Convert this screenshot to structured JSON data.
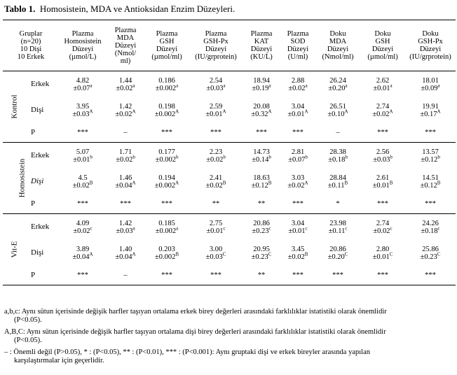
{
  "caption": {
    "label": "Tablo 1.",
    "text": "Homosistein, MDA ve Antioksidan Enzim Düzeyleri."
  },
  "header": {
    "first_col": [
      "Gruplar",
      "(n=20)",
      "10 Dişi",
      "10 Erkek"
    ],
    "columns": [
      [
        "Plazma",
        "Homosistein",
        "Düzeyi",
        "(µmol/L)"
      ],
      [
        "Plazma",
        "MDA",
        "Düzeyi",
        "(Nmol/",
        "ml)"
      ],
      [
        "Plazma",
        "GSH",
        "Düzeyi",
        "(µmol/ml)"
      ],
      [
        "Plazma",
        "GSH-Px",
        "Düzeyi",
        "(IU/grprotein)"
      ],
      [
        "Plazma",
        "KAT",
        "Düzeyi",
        "(KU/L)"
      ],
      [
        "Plazma",
        "SOD",
        "Düzeyi",
        "(U/ml)"
      ],
      [
        "Doku",
        "MDA",
        "Düzeyi",
        "(Nmol/ml)"
      ],
      [
        "Doku",
        "GSH",
        "Düzeyi",
        "(µmol/ml)"
      ],
      [
        "Doku",
        "GSH-Px",
        "Düzeyi",
        "(IU/grprotein)"
      ]
    ]
  },
  "groups": [
    {
      "name": "Kontrol",
      "rows": [
        {
          "label": "Erkek",
          "italic": false,
          "cells": [
            [
              "4.82",
              "±0.07",
              "a"
            ],
            [
              "1.44",
              "±0.02",
              "a"
            ],
            [
              "0.186",
              "±0.002",
              "a"
            ],
            [
              "2.54",
              "±0.03",
              "a"
            ],
            [
              "18.94",
              "±0.19",
              "a"
            ],
            [
              "2.88",
              "±0.02",
              "a"
            ],
            [
              "26.24",
              "±0.20",
              "a"
            ],
            [
              "2.62",
              "±0.01",
              "a"
            ],
            [
              "18.01",
              "±0.09",
              "a"
            ]
          ]
        },
        {
          "label": "Dişi",
          "italic": false,
          "cells": [
            [
              "3.95",
              "±0.03",
              "A"
            ],
            [
              "1.42",
              "±0.02",
              "A"
            ],
            [
              "0.198",
              "±0.002",
              "A"
            ],
            [
              "2.59",
              "±0.01",
              "A"
            ],
            [
              "20.08",
              "±0.32",
              "A"
            ],
            [
              "3.04",
              "±0.01",
              "A"
            ],
            [
              "26.51",
              "±0.10",
              "A"
            ],
            [
              "2.74",
              "±0.02",
              "A"
            ],
            [
              "19.91",
              "±0.17",
              "A"
            ]
          ]
        }
      ],
      "p": [
        "***",
        "–",
        "***",
        "***",
        "***",
        "***",
        "–",
        "***",
        "***"
      ]
    },
    {
      "name": "Homosistein",
      "rows": [
        {
          "label": "Erkek",
          "italic": false,
          "cells": [
            [
              "5.07",
              "±0.01",
              "b"
            ],
            [
              "1.71",
              "±0.02",
              "b"
            ],
            [
              "0.177",
              "±0.002",
              "b"
            ],
            [
              "2.23",
              "±0.02",
              "b"
            ],
            [
              "14.73",
              "±0.14",
              "b"
            ],
            [
              "2.81",
              "±0.07",
              "b"
            ],
            [
              "28.38",
              "±0.18",
              "b"
            ],
            [
              "2.56",
              "±0.03",
              "b"
            ],
            [
              "13.57",
              "±0.12",
              "b"
            ]
          ]
        },
        {
          "label": "Dişi",
          "italic": true,
          "cells": [
            [
              "4.5",
              "±0.02",
              "B"
            ],
            [
              "1.46",
              "±0.04",
              "A"
            ],
            [
              "0.194",
              "±0.002",
              "A"
            ],
            [
              "2.41",
              "±0.02",
              "B"
            ],
            [
              "18.63",
              "±0.12",
              "B"
            ],
            [
              "3.03",
              "±0.02",
              "A"
            ],
            [
              "28.84",
              "±0.11",
              "B"
            ],
            [
              "2.61",
              "±0.01",
              "B"
            ],
            [
              "14.51",
              "±0.12",
              "B"
            ]
          ]
        }
      ],
      "p": [
        "***",
        "***",
        "***",
        "**",
        "**",
        "***",
        "*",
        "***",
        "***"
      ]
    },
    {
      "name": "Vit-E",
      "rows": [
        {
          "label": "Erkek",
          "italic": false,
          "cells": [
            [
              "4.09",
              "±0.02",
              "c"
            ],
            [
              "1.42",
              "±0.03",
              "a"
            ],
            [
              "0.185",
              "±0.002",
              "a"
            ],
            [
              "2.75",
              "±0.01",
              "c"
            ],
            [
              "20.86",
              "±0.23",
              "c"
            ],
            [
              "3.04",
              "±0.01",
              "c"
            ],
            [
              "23.98",
              "±0.11",
              "c"
            ],
            [
              "2.74",
              "±0.02",
              "c"
            ],
            [
              "24.26",
              "±0.18",
              "c"
            ]
          ]
        },
        {
          "label": "Dişi",
          "italic": false,
          "cells": [
            [
              "3.89",
              "±0.04",
              "A"
            ],
            [
              "1.40",
              "±0.04",
              "A"
            ],
            [
              "0.203",
              "±0.002",
              "B"
            ],
            [
              "3.00",
              "±0.03",
              "C"
            ],
            [
              "20.95",
              "±0.23",
              "C"
            ],
            [
              "3.45",
              "±0.02",
              "B"
            ],
            [
              "20.86",
              "±0.20",
              "C"
            ],
            [
              "2.80",
              "±0.01",
              "C"
            ],
            [
              "25.86",
              "±0.23",
              "C"
            ]
          ]
        }
      ],
      "p": [
        "***",
        "–",
        "***",
        "***",
        "**",
        "***",
        "***",
        "***",
        "***"
      ]
    }
  ],
  "p_label": "P",
  "footnotes": [
    {
      "lead": "a,b,c: Aynı sütun içerisinde değişik harfler taşıyan ortalama erkek birey değerleri arasındaki farklılıklar istatistiki olarak önemlidir",
      "cont": "(P<0.05)."
    },
    {
      "lead": "A,B,C: Aynı sütun içerisinde değişik harfler taşıyan ortalama dişi birey değerleri arasındaki farklılıklar istatistiki olarak önemlidir",
      "cont": "(P<0.05)."
    },
    {
      "lead": "– : Önemli değil (P>0.05),  * : (P<0.05),  ** : (P<0.01),  *** : (P<0.001): Aynı gruptaki dişi ve erkek bireyler arasında yapılan",
      "cont": "karşılaştırmalar için geçerlidir."
    }
  ]
}
